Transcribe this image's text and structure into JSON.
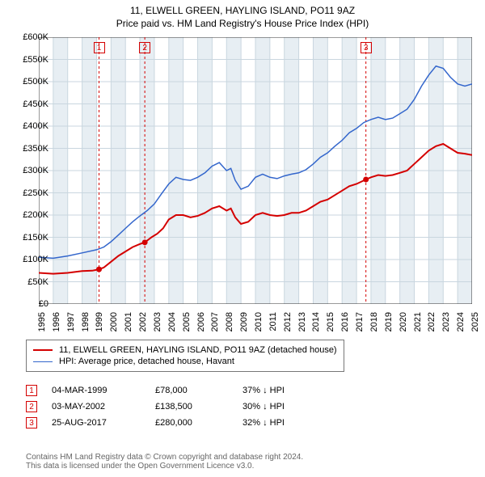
{
  "title_line1": "11, ELWELL GREEN, HAYLING ISLAND, PO11 9AZ",
  "title_line2": "Price paid vs. HM Land Registry's House Price Index (HPI)",
  "chart": {
    "type": "line",
    "background_color": "#ffffff",
    "grid_color": "#c9d6df",
    "axis_color": "#333333",
    "band_color": "#e7eef3",
    "ylim": [
      0,
      600000
    ],
    "ytick_step": 50000,
    "ytick_prefix": "£",
    "ytick_suffix": "K",
    "x_years": [
      1995,
      1996,
      1997,
      1998,
      1999,
      2000,
      2001,
      2002,
      2003,
      2004,
      2005,
      2006,
      2007,
      2008,
      2009,
      2010,
      2011,
      2012,
      2013,
      2014,
      2015,
      2016,
      2017,
      2018,
      2019,
      2020,
      2021,
      2022,
      2023,
      2024,
      2025
    ],
    "series": [
      {
        "name": "price_paid",
        "label": "11, ELWELL GREEN, HAYLING ISLAND, PO11 9AZ (detached house)",
        "color": "#d40000",
        "line_width": 2,
        "data": [
          [
            1995.0,
            70000
          ],
          [
            1996.0,
            68000
          ],
          [
            1997.0,
            70000
          ],
          [
            1998.0,
            74000
          ],
          [
            1998.7,
            75000
          ],
          [
            1999.17,
            78000
          ],
          [
            1999.5,
            82000
          ],
          [
            2000.0,
            95000
          ],
          [
            2000.5,
            108000
          ],
          [
            2001.0,
            118000
          ],
          [
            2001.5,
            128000
          ],
          [
            2002.0,
            135000
          ],
          [
            2002.34,
            138500
          ],
          [
            2002.8,
            150000
          ],
          [
            2003.2,
            158000
          ],
          [
            2003.6,
            170000
          ],
          [
            2004.0,
            190000
          ],
          [
            2004.5,
            200000
          ],
          [
            2005.0,
            200000
          ],
          [
            2005.5,
            195000
          ],
          [
            2006.0,
            198000
          ],
          [
            2006.5,
            205000
          ],
          [
            2007.0,
            215000
          ],
          [
            2007.5,
            220000
          ],
          [
            2008.0,
            210000
          ],
          [
            2008.3,
            215000
          ],
          [
            2008.6,
            195000
          ],
          [
            2009.0,
            180000
          ],
          [
            2009.5,
            185000
          ],
          [
            2010.0,
            200000
          ],
          [
            2010.5,
            205000
          ],
          [
            2011.0,
            200000
          ],
          [
            2011.5,
            198000
          ],
          [
            2012.0,
            200000
          ],
          [
            2012.5,
            205000
          ],
          [
            2013.0,
            205000
          ],
          [
            2013.5,
            210000
          ],
          [
            2014.0,
            220000
          ],
          [
            2014.5,
            230000
          ],
          [
            2015.0,
            235000
          ],
          [
            2015.5,
            245000
          ],
          [
            2016.0,
            255000
          ],
          [
            2016.5,
            265000
          ],
          [
            2017.0,
            270000
          ],
          [
            2017.65,
            280000
          ],
          [
            2018.0,
            285000
          ],
          [
            2018.5,
            290000
          ],
          [
            2019.0,
            288000
          ],
          [
            2019.5,
            290000
          ],
          [
            2020.0,
            295000
          ],
          [
            2020.5,
            300000
          ],
          [
            2021.0,
            315000
          ],
          [
            2021.5,
            330000
          ],
          [
            2022.0,
            345000
          ],
          [
            2022.5,
            355000
          ],
          [
            2023.0,
            360000
          ],
          [
            2023.5,
            350000
          ],
          [
            2024.0,
            340000
          ],
          [
            2024.5,
            338000
          ],
          [
            2025.0,
            335000
          ]
        ]
      },
      {
        "name": "hpi",
        "label": "HPI: Average price, detached house, Havant",
        "color": "#3366cc",
        "line_width": 1.5,
        "data": [
          [
            1995.0,
            105000
          ],
          [
            1996.0,
            103000
          ],
          [
            1997.0,
            108000
          ],
          [
            1998.0,
            115000
          ],
          [
            1999.0,
            122000
          ],
          [
            1999.5,
            128000
          ],
          [
            2000.0,
            140000
          ],
          [
            2000.5,
            155000
          ],
          [
            2001.0,
            170000
          ],
          [
            2001.5,
            185000
          ],
          [
            2002.0,
            198000
          ],
          [
            2002.5,
            210000
          ],
          [
            2003.0,
            225000
          ],
          [
            2003.5,
            248000
          ],
          [
            2004.0,
            270000
          ],
          [
            2004.5,
            285000
          ],
          [
            2005.0,
            280000
          ],
          [
            2005.5,
            278000
          ],
          [
            2006.0,
            285000
          ],
          [
            2006.5,
            295000
          ],
          [
            2007.0,
            310000
          ],
          [
            2007.5,
            318000
          ],
          [
            2008.0,
            300000
          ],
          [
            2008.3,
            305000
          ],
          [
            2008.6,
            278000
          ],
          [
            2009.0,
            258000
          ],
          [
            2009.5,
            265000
          ],
          [
            2010.0,
            285000
          ],
          [
            2010.5,
            292000
          ],
          [
            2011.0,
            285000
          ],
          [
            2011.5,
            282000
          ],
          [
            2012.0,
            288000
          ],
          [
            2012.5,
            292000
          ],
          [
            2013.0,
            295000
          ],
          [
            2013.5,
            302000
          ],
          [
            2014.0,
            315000
          ],
          [
            2014.5,
            330000
          ],
          [
            2015.0,
            340000
          ],
          [
            2015.5,
            355000
          ],
          [
            2016.0,
            368000
          ],
          [
            2016.5,
            385000
          ],
          [
            2017.0,
            395000
          ],
          [
            2017.5,
            408000
          ],
          [
            2018.0,
            415000
          ],
          [
            2018.5,
            420000
          ],
          [
            2019.0,
            415000
          ],
          [
            2019.5,
            418000
          ],
          [
            2020.0,
            428000
          ],
          [
            2020.5,
            438000
          ],
          [
            2021.0,
            460000
          ],
          [
            2021.5,
            490000
          ],
          [
            2022.0,
            515000
          ],
          [
            2022.5,
            535000
          ],
          [
            2023.0,
            530000
          ],
          [
            2023.5,
            510000
          ],
          [
            2024.0,
            495000
          ],
          [
            2024.5,
            490000
          ],
          [
            2025.0,
            495000
          ]
        ]
      }
    ],
    "event_markers": [
      {
        "n": "1",
        "x": 1999.17,
        "color": "#d40000",
        "date": "04-MAR-1999",
        "price": "£78,000",
        "delta": "37% ↓ HPI",
        "dot_y": 78000
      },
      {
        "n": "2",
        "x": 2002.34,
        "color": "#d40000",
        "date": "03-MAY-2002",
        "price": "£138,500",
        "delta": "30% ↓ HPI",
        "dot_y": 138500
      },
      {
        "n": "3",
        "x": 2017.65,
        "color": "#d40000",
        "date": "25-AUG-2017",
        "price": "£280,000",
        "delta": "32% ↓ HPI",
        "dot_y": 280000
      }
    ]
  },
  "legend_border": "#777777",
  "attribution_line1": "Contains HM Land Registry data © Crown copyright and database right 2024.",
  "attribution_line2": "This data is licensed under the Open Government Licence v3.0."
}
